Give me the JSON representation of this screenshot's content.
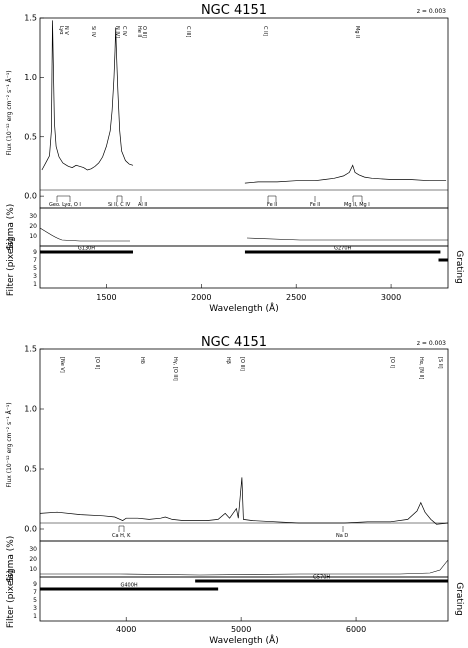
{
  "chart_data": [
    {
      "type": "line",
      "title": "NGC 4151",
      "redshift_label": "z = 0.003",
      "ylabel": "Flux (10⁻¹² erg cm⁻² s⁻¹ Å⁻¹)",
      "xlabel": "Wavelength (Å)",
      "xlim": [
        1150,
        3300
      ],
      "ylim": [
        -0.1,
        1.5
      ],
      "xticks": [
        1500,
        2000,
        2500,
        3000
      ],
      "yticks": [
        0.0,
        0.5,
        1.0,
        1.5
      ],
      "series": [
        {
          "x": [
            1160,
            1180,
            1200,
            1210,
            1216,
            1220,
            1226,
            1235,
            1250,
            1270,
            1290,
            1300,
            1320,
            1340,
            1360,
            1380,
            1400,
            1420,
            1440,
            1460,
            1480,
            1500,
            1520,
            1530,
            1540,
            1545,
            1549,
            1553,
            1560,
            1570,
            1580,
            1600,
            1620,
            1640
          ],
          "y": [
            0.22,
            0.28,
            0.34,
            0.55,
            1.48,
            1.12,
            0.62,
            0.42,
            0.33,
            0.28,
            0.26,
            0.25,
            0.24,
            0.26,
            0.25,
            0.24,
            0.22,
            0.23,
            0.25,
            0.28,
            0.33,
            0.42,
            0.55,
            0.72,
            1.0,
            1.22,
            1.42,
            1.2,
            0.9,
            0.55,
            0.38,
            0.3,
            0.27,
            0.26
          ]
        },
        {
          "x": [
            2230,
            2300,
            2400,
            2500,
            2600,
            2650,
            2700,
            2750,
            2780,
            2798,
            2810,
            2830,
            2860,
            2900,
            3000,
            3100,
            3200,
            3290
          ],
          "y": [
            0.11,
            0.12,
            0.12,
            0.13,
            0.13,
            0.14,
            0.15,
            0.17,
            0.2,
            0.26,
            0.2,
            0.18,
            0.16,
            0.15,
            0.14,
            0.14,
            0.13,
            0.13
          ]
        }
      ],
      "emission_lines": [
        "Lyα",
        "N V",
        "Si IV",
        "N IV]",
        "C IV",
        "He II",
        "O III]",
        "C III]",
        "C II]",
        "Mg II"
      ],
      "absorption_lines": [
        "Geo. Lyα, O I",
        "Si II, C IV",
        "Al II",
        "Fe II",
        "Fe II",
        "Mg II, Mg I"
      ],
      "sigma": {
        "label": "Sigma (%)",
        "yticks": [
          10,
          20,
          30
        ]
      },
      "filter": {
        "label": "Filter (pixels)",
        "yticks": [
          1,
          3,
          5,
          7,
          9
        ]
      },
      "gratings_label": "Grating",
      "gratings": [
        {
          "name": "G130H",
          "range": [
            1150,
            1640
          ]
        },
        {
          "name": "G270H",
          "range": [
            2230,
            3260
          ]
        },
        {
          "name": "",
          "range": [
            3250,
            3300
          ]
        }
      ]
    },
    {
      "type": "line",
      "title": "NGC 4151",
      "redshift_label": "z = 0.003",
      "ylabel": "Flux (10⁻¹² erg cm⁻² s⁻¹ Å⁻¹)",
      "xlabel": "Wavelength (Å)",
      "xlim": [
        3250,
        6800
      ],
      "ylim": [
        -0.1,
        1.5
      ],
      "xticks": [
        4000,
        5000,
        6000
      ],
      "yticks": [
        0.0,
        0.5,
        1.0,
        1.5
      ],
      "series": [
        {
          "x": [
            3250,
            3400,
            3600,
            3800,
            3900,
            3970,
            4000,
            4100,
            4200,
            4300,
            4340,
            4400,
            4500,
            4600,
            4700,
            4800,
            4861,
            4900,
            4959,
            4975,
            5007,
            5020,
            5100,
            5300,
            5500,
            5700,
            5900,
            6100,
            6300,
            6450,
            6530,
            6563,
            6600,
            6650,
            6700,
            6800
          ],
          "y": [
            0.13,
            0.14,
            0.12,
            0.11,
            0.1,
            0.07,
            0.09,
            0.09,
            0.08,
            0.09,
            0.1,
            0.08,
            0.07,
            0.07,
            0.07,
            0.08,
            0.13,
            0.09,
            0.17,
            0.09,
            0.43,
            0.08,
            0.07,
            0.06,
            0.05,
            0.05,
            0.05,
            0.06,
            0.06,
            0.08,
            0.15,
            0.22,
            0.14,
            0.08,
            0.04,
            0.05
          ]
        }
      ],
      "emission_lines": [
        "[Ne V]",
        "[O II]",
        "Hδ",
        "Hγ, [O III]",
        "Hβ",
        "[O III]",
        "[O I]",
        "Hα, [N II]",
        "[S II]"
      ],
      "absorption_lines": [
        "Ca H, K",
        "Na D"
      ],
      "sigma": {
        "label": "Sigma (%)",
        "yticks": [
          10,
          20,
          30
        ]
      },
      "filter": {
        "label": "Filter (pixels)",
        "yticks": [
          1,
          3,
          5,
          7,
          9
        ]
      },
      "gratings_label": "Grating",
      "gratings": [
        {
          "name": "G400H",
          "range": [
            3250,
            4800
          ]
        },
        {
          "name": "G570H",
          "range": [
            4600,
            6800
          ]
        }
      ]
    }
  ]
}
